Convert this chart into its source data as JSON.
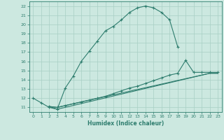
{
  "xlabel": "Humidex (Indice chaleur)",
  "bg_color": "#cce8e0",
  "grid_color": "#a8cfc4",
  "line_color": "#2e7d6e",
  "line1_x": [
    0,
    1,
    2,
    3,
    4,
    5,
    6,
    7,
    8,
    9,
    10,
    11,
    12,
    13,
    14,
    15,
    16,
    17,
    18
  ],
  "line1_y": [
    12.0,
    11.5,
    11.0,
    10.8,
    13.1,
    14.4,
    16.0,
    17.1,
    18.2,
    19.3,
    19.8,
    20.5,
    21.3,
    21.8,
    22.0,
    21.8,
    21.3,
    20.5,
    17.6
  ],
  "line2_x": [
    2,
    3,
    4,
    5,
    6,
    7,
    8,
    9,
    10,
    11,
    12,
    13,
    14,
    15,
    16,
    17,
    18,
    19,
    20,
    21,
    22,
    23
  ],
  "line2_y": [
    11.1,
    11.0,
    11.2,
    11.4,
    11.6,
    11.8,
    12.0,
    12.2,
    12.5,
    12.8,
    13.1,
    13.3,
    13.6,
    13.9,
    14.2,
    14.5,
    14.7,
    16.1,
    14.8,
    14.8,
    14.8,
    14.8
  ],
  "line3_x": [
    2,
    3,
    22,
    23
  ],
  "line3_y": [
    11.1,
    11.0,
    14.7,
    14.7
  ],
  "line4_x": [
    2,
    3,
    22,
    23
  ],
  "line4_y": [
    11.1,
    10.8,
    14.7,
    14.7
  ],
  "ylim": [
    10.5,
    22.5
  ],
  "xlim": [
    -0.5,
    23.5
  ],
  "yticks": [
    11,
    12,
    13,
    14,
    15,
    16,
    17,
    18,
    19,
    20,
    21,
    22
  ],
  "xticks": [
    0,
    1,
    2,
    3,
    4,
    5,
    6,
    7,
    8,
    9,
    10,
    11,
    12,
    13,
    14,
    15,
    16,
    17,
    18,
    19,
    20,
    21,
    22,
    23
  ]
}
